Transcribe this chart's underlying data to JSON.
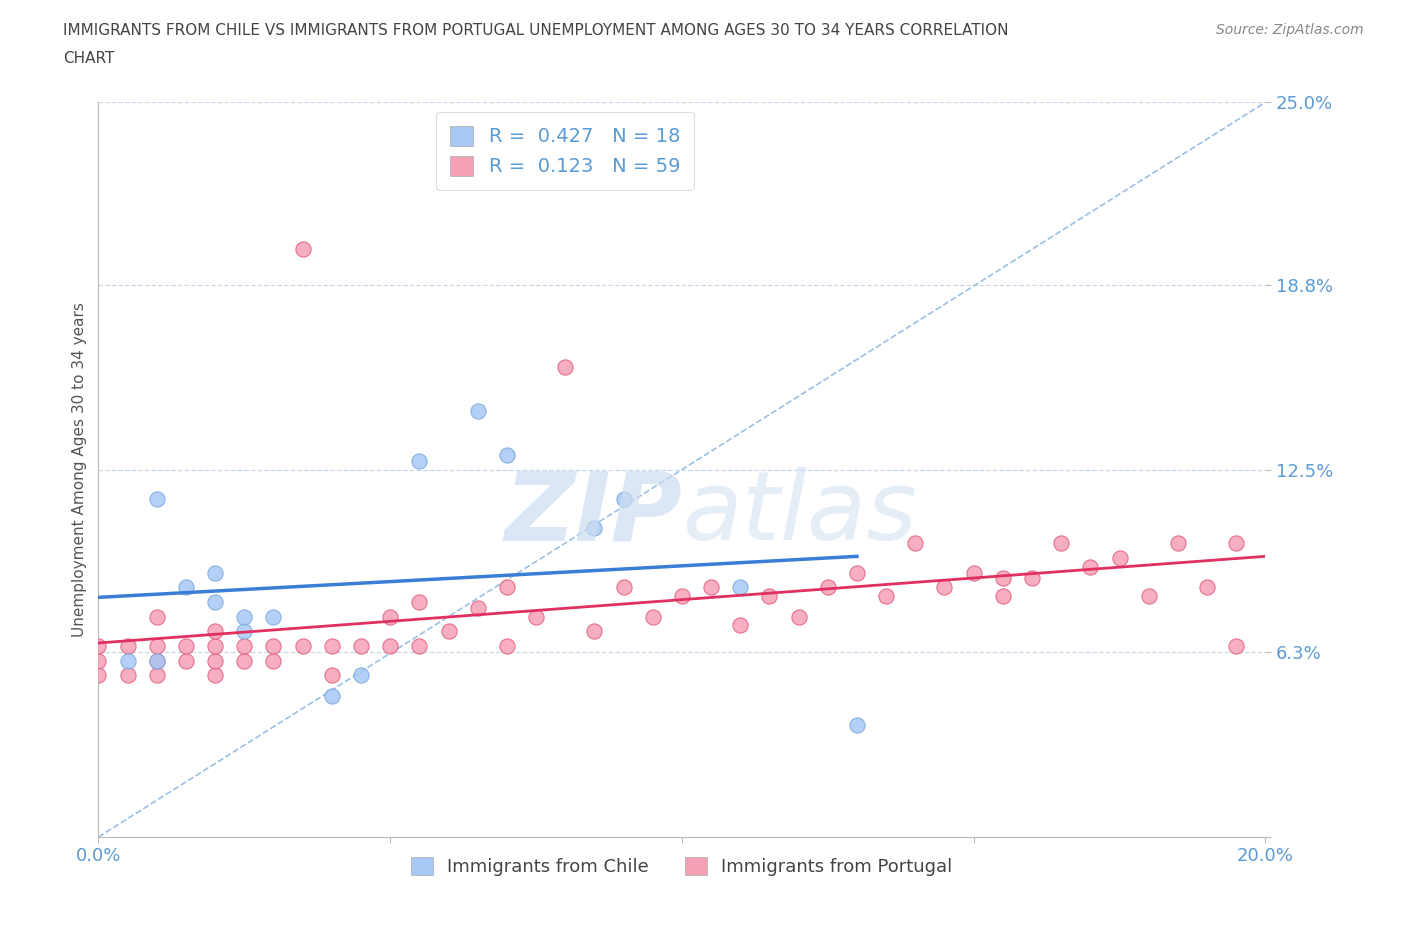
{
  "title_line1": "IMMIGRANTS FROM CHILE VS IMMIGRANTS FROM PORTUGAL UNEMPLOYMENT AMONG AGES 30 TO 34 YEARS CORRELATION",
  "title_line2": "CHART",
  "source": "Source: ZipAtlas.com",
  "ylabel": "Unemployment Among Ages 30 to 34 years",
  "xlim": [
    0.0,
    0.2
  ],
  "ylim": [
    0.0,
    0.25
  ],
  "yticks": [
    0.0,
    0.063,
    0.125,
    0.188,
    0.25
  ],
  "ytick_labels": [
    "",
    "6.3%",
    "12.5%",
    "18.8%",
    "25.0%"
  ],
  "xticks": [
    0.0,
    0.05,
    0.1,
    0.15,
    0.2
  ],
  "xtick_labels": [
    "0.0%",
    "",
    "",
    "",
    "20.0%"
  ],
  "chile_R": 0.427,
  "chile_N": 18,
  "portugal_R": 0.123,
  "portugal_N": 59,
  "chile_scatter_color": "#a8c8f5",
  "chile_edge_color": "#7aaae0",
  "portugal_scatter_color": "#f5a0b5",
  "portugal_edge_color": "#e06080",
  "chile_line_color": "#3a7fd5",
  "portugal_line_color": "#e03060",
  "trend_line_color": "#90b8e0",
  "background_color": "#ffffff",
  "grid_color": "#c8d8e8",
  "axis_tick_color": "#5b9bd5",
  "title_color": "#444444",
  "source_color": "#888888",
  "watermark_color": "#ccddf0",
  "legend_text_color": "#5b9bd5",
  "chile_x": [
    0.005,
    0.01,
    0.01,
    0.015,
    0.02,
    0.02,
    0.025,
    0.025,
    0.03,
    0.04,
    0.045,
    0.055,
    0.065,
    0.07,
    0.085,
    0.09,
    0.11,
    0.13
  ],
  "chile_y": [
    0.06,
    0.06,
    0.115,
    0.085,
    0.08,
    0.09,
    0.07,
    0.075,
    0.075,
    0.048,
    0.055,
    0.128,
    0.145,
    0.13,
    0.105,
    0.115,
    0.085,
    0.038
  ],
  "portugal_x": [
    0.0,
    0.0,
    0.0,
    0.005,
    0.005,
    0.01,
    0.01,
    0.01,
    0.01,
    0.015,
    0.015,
    0.02,
    0.02,
    0.02,
    0.02,
    0.025,
    0.025,
    0.03,
    0.03,
    0.035,
    0.035,
    0.04,
    0.04,
    0.045,
    0.05,
    0.05,
    0.055,
    0.055,
    0.06,
    0.065,
    0.07,
    0.07,
    0.075,
    0.08,
    0.085,
    0.09,
    0.095,
    0.1,
    0.105,
    0.11,
    0.115,
    0.12,
    0.125,
    0.13,
    0.135,
    0.14,
    0.145,
    0.15,
    0.155,
    0.155,
    0.16,
    0.165,
    0.17,
    0.175,
    0.18,
    0.185,
    0.19,
    0.195,
    0.195
  ],
  "portugal_y": [
    0.055,
    0.06,
    0.065,
    0.055,
    0.065,
    0.055,
    0.06,
    0.065,
    0.075,
    0.06,
    0.065,
    0.055,
    0.06,
    0.065,
    0.07,
    0.06,
    0.065,
    0.06,
    0.065,
    0.065,
    0.2,
    0.055,
    0.065,
    0.065,
    0.065,
    0.075,
    0.065,
    0.08,
    0.07,
    0.078,
    0.065,
    0.085,
    0.075,
    0.16,
    0.07,
    0.085,
    0.075,
    0.082,
    0.085,
    0.072,
    0.082,
    0.075,
    0.085,
    0.09,
    0.082,
    0.1,
    0.085,
    0.09,
    0.082,
    0.088,
    0.088,
    0.1,
    0.092,
    0.095,
    0.082,
    0.1,
    0.085,
    0.065,
    0.1
  ]
}
